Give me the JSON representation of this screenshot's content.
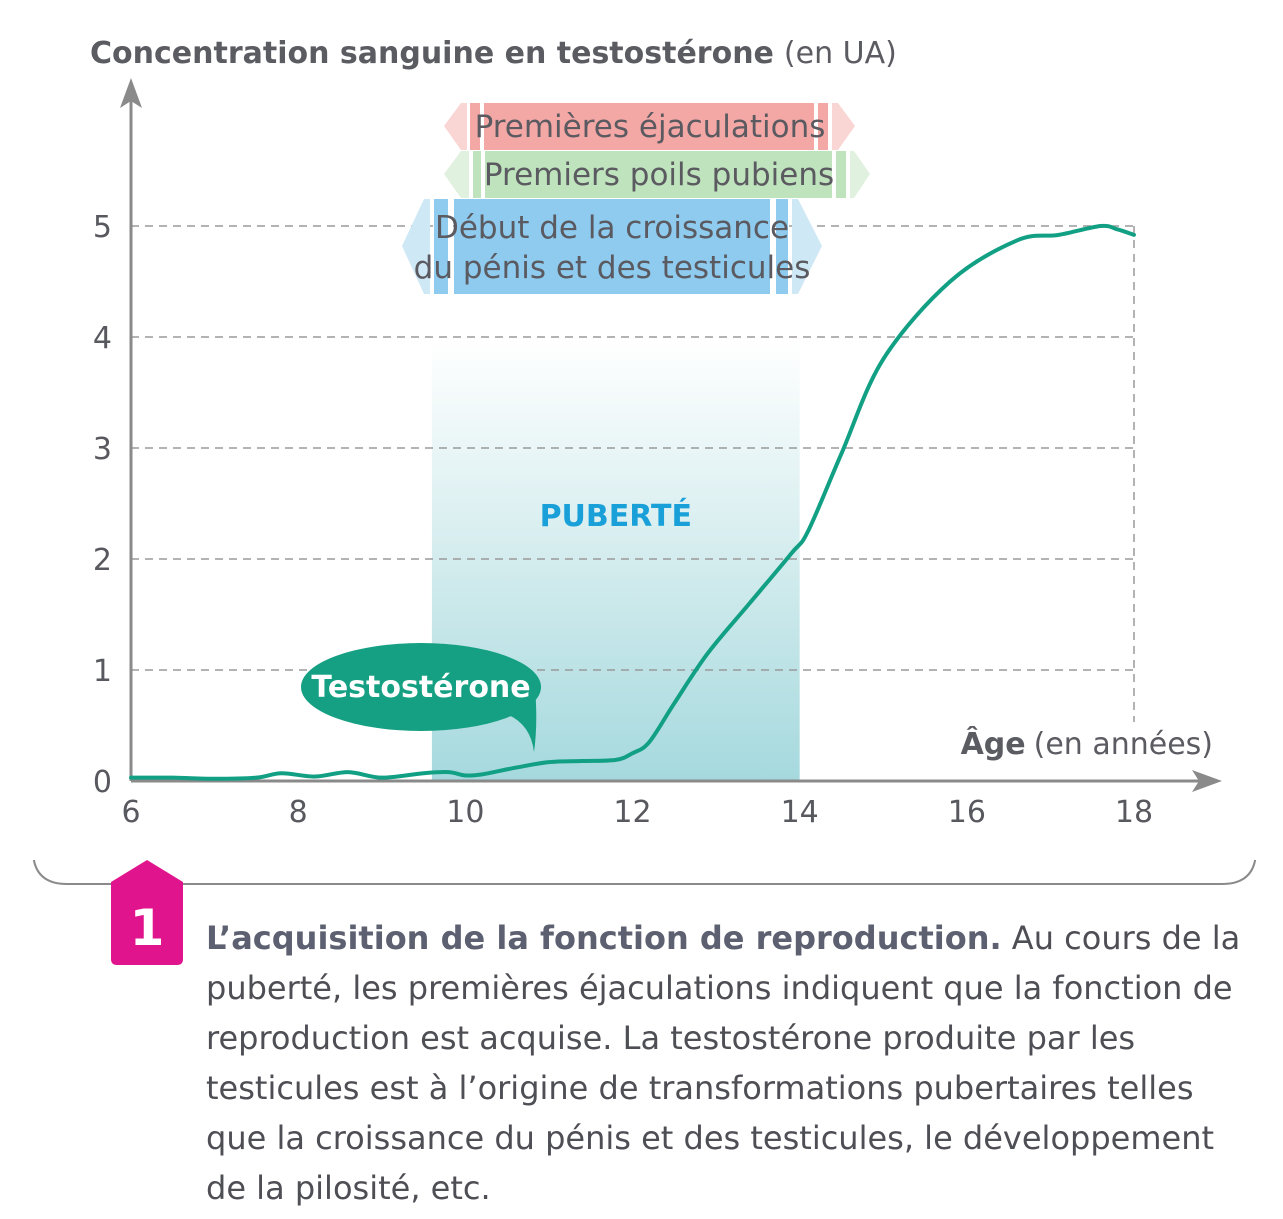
{
  "chart_data": {
    "type": "line",
    "ylabel_bold": "Concentration sanguine en testostérone",
    "ylabel_unit": "(en UA)",
    "xlabel_bold": "Âge",
    "xlabel_unit": "(en années)",
    "xlim": [
      6,
      18
    ],
    "ylim": [
      0,
      5
    ],
    "x_ticks": [
      "6",
      "8",
      "10",
      "12",
      "14",
      "16",
      "18"
    ],
    "y_ticks": [
      "0",
      "1",
      "2",
      "3",
      "4",
      "5"
    ],
    "grid": true,
    "series": [
      {
        "name": "Testostérone",
        "color": "#12a084",
        "x": [
          6,
          6.5,
          7,
          7.5,
          7.8,
          8.2,
          8.6,
          9,
          9.5,
          9.8,
          10,
          10.2,
          10.6,
          11,
          11.4,
          11.8,
          12,
          12.2,
          12.5,
          12.9,
          13.4,
          13.9,
          14.1,
          14.5,
          15,
          15.8,
          16.6,
          17.1,
          17.6,
          17.8,
          18
        ],
        "y": [
          0.03,
          0.03,
          0.02,
          0.03,
          0.07,
          0.04,
          0.08,
          0.03,
          0.07,
          0.08,
          0.05,
          0.06,
          0.12,
          0.17,
          0.18,
          0.19,
          0.25,
          0.35,
          0.7,
          1.15,
          1.6,
          2.05,
          2.25,
          2.95,
          3.8,
          4.5,
          4.87,
          4.92,
          5.0,
          4.97,
          4.92
        ]
      }
    ],
    "puberty_band": {
      "label": "PUBERTÉ",
      "x_start": 9.6,
      "x_end": 14,
      "color": "#9fd7dc"
    },
    "annotations": [
      {
        "label": "Premières éjaculations",
        "x_start": 10,
        "x_end": 14.2,
        "color": "#f4a8a6"
      },
      {
        "label": "Premiers poils pubiens",
        "x_start": 10.2,
        "x_end": 14.5,
        "color": "#bfe3bd"
      },
      {
        "label_line1": "Début de la croissance",
        "label_line2": "du pénis et des testicules",
        "x_start": 9.6,
        "x_end": 13.8,
        "color": "#8ecbef"
      }
    ],
    "callout_label": "Testostérone",
    "callout_color": "#15a083"
  },
  "caption": {
    "number": "1",
    "title": "L’acquisition de la fonction de reproduction.",
    "text": " Au cours de la puberté, les premières éjaculations indiquent que la fonction de reproduction est acquise. La testostérone produite par les testicules est à l’origine de transformations pubertaires telles que la croissance du pénis et des testicules, le développement de la pilosité, etc.",
    "badge_color": "#e0148c",
    "frame_color": "#8a8a8a"
  }
}
